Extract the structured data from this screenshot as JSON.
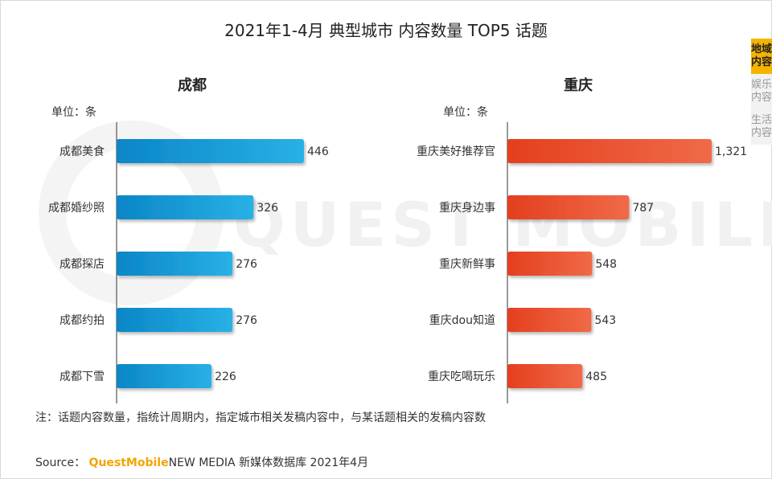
{
  "title": "2021年1-4月 典型城市 内容数量 TOP5 话题",
  "watermark": "QUEST MOBILE",
  "unit_label": "单位：条",
  "colors": {
    "chengdu": "#1ba0dc",
    "chongqing": "#ee5a33",
    "tab_active": "#f4b400"
  },
  "side_tabs": [
    {
      "label": "地域内容",
      "active": true
    },
    {
      "label": "娱乐内容",
      "active": false
    },
    {
      "label": "生活内容",
      "active": false
    }
  ],
  "note": "注：话题内容数量，指统计周期内，指定城市相关发稿内容中，与某话题相关的发稿内容数",
  "source": {
    "prefix": "Source：",
    "brand": "QuestMobile",
    "suffix": "NEW MEDIA 新媒体数据库 2021年4月"
  },
  "chart_data": [
    {
      "type": "bar",
      "title": "成都",
      "categories": [
        "成都美食",
        "成都婚纱照",
        "成都探店",
        "成都约拍",
        "成都下雪"
      ],
      "values": [
        446,
        326,
        276,
        276,
        226
      ],
      "value_labels": [
        "446",
        "326",
        "276",
        "276",
        "226"
      ],
      "orientation": "horizontal"
    },
    {
      "type": "bar",
      "title": "重庆",
      "categories": [
        "重庆美好推荐官",
        "重庆身边事",
        "重庆新鲜事",
        "重庆dou知道",
        "重庆吃喝玩乐"
      ],
      "values": [
        1321,
        787,
        548,
        543,
        485
      ],
      "value_labels": [
        "1,321",
        "787",
        "548",
        "543",
        "485"
      ],
      "orientation": "horizontal"
    }
  ]
}
